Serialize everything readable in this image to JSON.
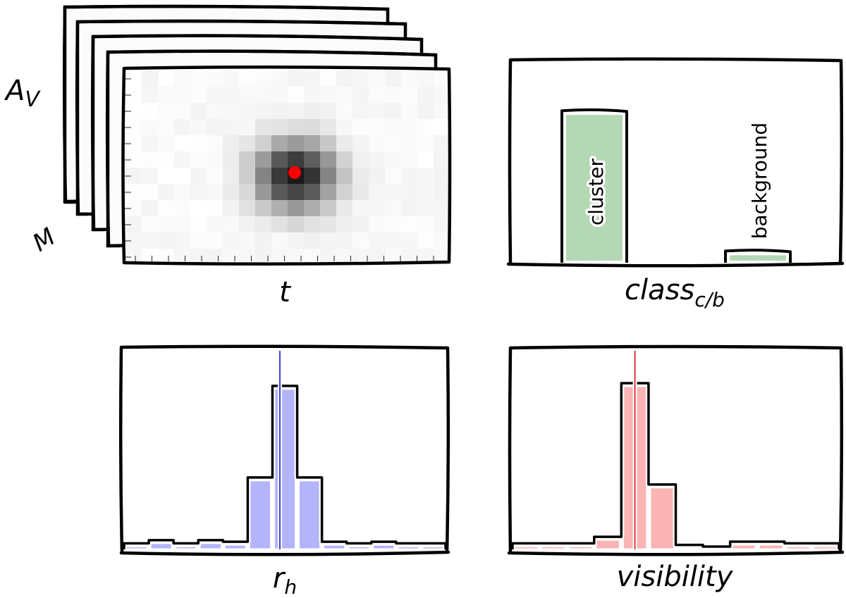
{
  "cube": {
    "y_label": "A",
    "y_label_sub": "V",
    "depth_label": "M",
    "x_label": "t",
    "peak_color": "#ff0000"
  },
  "class_chart": {
    "label": "class",
    "label_sub": "c/b",
    "bar_color": "#b4d7b4",
    "chart_data": {
      "type": "bar",
      "categories": [
        "cluster",
        "background"
      ],
      "values": [
        0.94,
        0.06
      ],
      "ylim": [
        0,
        1.25
      ]
    }
  },
  "rh_chart": {
    "label": "r",
    "label_sub": "h",
    "fill_color": "#b4b4fa",
    "line_color": "#1010c8",
    "chart_data": {
      "type": "bar",
      "values": [
        0.02,
        0.04,
        0.02,
        0.04,
        0.03,
        0.43,
        1.0,
        0.43,
        0.03,
        0.02,
        0.03,
        0.02,
        0.02
      ],
      "marker_position": 6.3,
      "ylim": [
        0,
        1.03
      ]
    }
  },
  "vis_chart": {
    "label": "visibility",
    "fill_color": "#fab4b4",
    "line_color": "#d01010",
    "chart_data": {
      "type": "bar",
      "values": [
        0.02,
        0.02,
        0.02,
        0.06,
        1.0,
        0.38,
        0.01,
        0.0,
        0.03,
        0.03,
        0.02,
        0.02
      ],
      "marker_position": 4.5,
      "ylim": [
        0,
        1.03
      ]
    }
  }
}
